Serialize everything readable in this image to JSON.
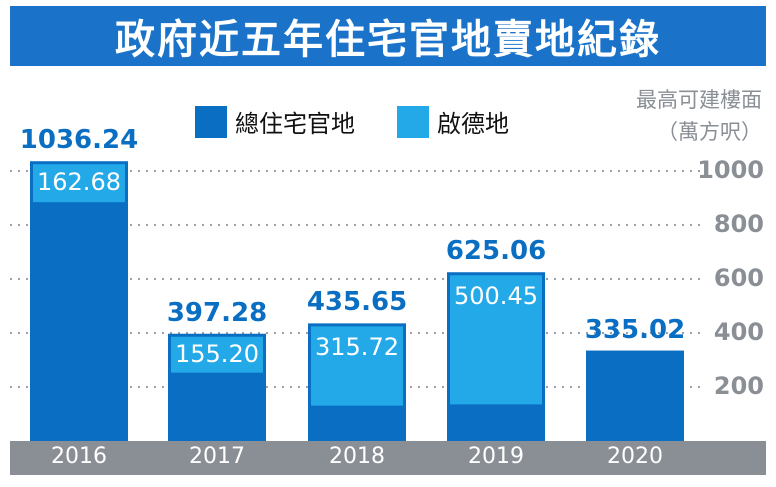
{
  "title": "政府近五年住宅官地賣地紀錄",
  "legend": {
    "total_label": "總住宅官地",
    "kai_tak_label": "啟德地"
  },
  "unit": {
    "line1": "最高可建樓面",
    "line2": "（萬方呎）"
  },
  "colors": {
    "title_bg": "#1a73c9",
    "total": "#0a6fc2",
    "kai_tak": "#23a8e8",
    "axis_bar": "#8a8f96",
    "total_label_text": "#0a6fc2",
    "grid": "#9aa0a6"
  },
  "chart_data": {
    "type": "bar",
    "categories": [
      "2016",
      "2017",
      "2018",
      "2019",
      "2020"
    ],
    "series": [
      {
        "name": "總住宅官地",
        "values": [
          1036.24,
          397.28,
          435.65,
          625.06,
          335.02
        ]
      },
      {
        "name": "啟德地",
        "values": [
          162.68,
          155.2,
          315.72,
          500.45,
          null
        ]
      }
    ],
    "total_labels": [
      "1036.24",
      "397.28",
      "435.65",
      "625.06",
      "335.02"
    ],
    "kai_tak_labels": [
      "162.68",
      "155.20",
      "315.72",
      "500.45",
      ""
    ],
    "yticks": [
      200,
      400,
      600,
      800,
      1000
    ],
    "ylim": [
      0,
      1000
    ],
    "grid": "dotted horizontal",
    "legend_position": "top"
  }
}
